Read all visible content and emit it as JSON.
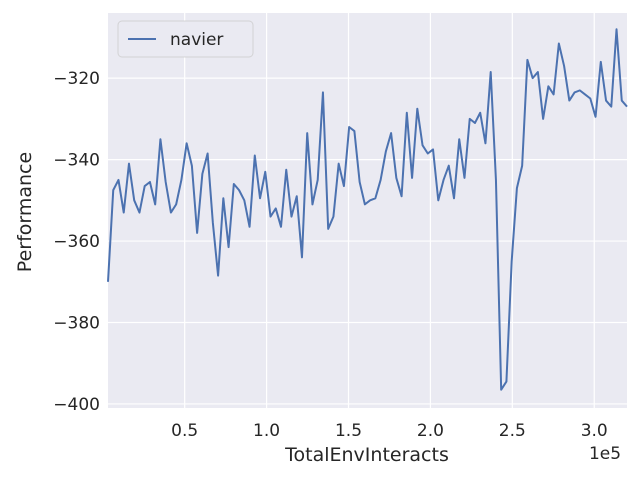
{
  "chart_data": {
    "type": "line",
    "x_label": "TotalEnvInteracts",
    "y_label": "Performance",
    "x_offset_label": "1e5",
    "x": [
      3200,
      6400,
      9600,
      12800,
      16000,
      19200,
      22400,
      25600,
      28800,
      32000,
      35200,
      38400,
      41600,
      44800,
      48000,
      51200,
      54400,
      57600,
      60800,
      64000,
      67200,
      70400,
      73600,
      76800,
      80000,
      83200,
      86400,
      89600,
      92800,
      96000,
      99200,
      102400,
      105600,
      108800,
      112000,
      115200,
      118400,
      121600,
      124800,
      128000,
      131200,
      134400,
      137600,
      140800,
      144000,
      147200,
      150400,
      153600,
      156800,
      160000,
      163200,
      166400,
      169600,
      172800,
      176000,
      179200,
      182400,
      185600,
      188800,
      192000,
      195200,
      198400,
      201600,
      204800,
      208000,
      211200,
      214400,
      217600,
      220800,
      224000,
      227200,
      230400,
      233600,
      236800,
      240000,
      243200,
      246400,
      249600,
      252800,
      256000,
      259200,
      262400,
      265600,
      268800,
      272000,
      275200,
      278400,
      281600,
      284800,
      288000,
      291200,
      294400,
      297600,
      300800,
      304000,
      307200,
      310400,
      313600,
      316800,
      320000
    ],
    "series": [
      {
        "name": "navier",
        "color": "#4c72b0",
        "values": [
          -370,
          -347.5,
          -345,
          -353,
          -341,
          -350,
          -353,
          -346.5,
          -345.5,
          -351,
          -335,
          -345.5,
          -353,
          -351,
          -345,
          -336,
          -341.5,
          -358,
          -343.5,
          -338.5,
          -355.5,
          -368.5,
          -349.5,
          -361.5,
          -346,
          -347.5,
          -350,
          -356.5,
          -339,
          -349.5,
          -343,
          -354,
          -352,
          -356.5,
          -342.5,
          -354,
          -349,
          -364,
          -333.5,
          -351,
          -345,
          -323.5,
          -357,
          -354,
          -341,
          -346.5,
          -332,
          -333,
          -345.5,
          -351,
          -350,
          -349.5,
          -345,
          -338,
          -333.5,
          -344.5,
          -349,
          -328.5,
          -344.5,
          -327.5,
          -336.5,
          -338.5,
          -337.5,
          -350,
          -345,
          -341.5,
          -349.5,
          -335,
          -344.5,
          -330,
          -331,
          -328.5,
          -336,
          -318.5,
          -345,
          -396.5,
          -394.5,
          -365,
          -347,
          -341.5,
          -315.5,
          -320,
          -318.5,
          -330,
          -322,
          -324,
          -311.5,
          -317,
          -325.5,
          -323.5,
          -323,
          -324,
          -325,
          -329.5,
          -316,
          -325.5,
          -327,
          -308,
          -325.5,
          -327
        ]
      }
    ],
    "xlim": [
      3200,
      320000
    ],
    "ylim": [
      -401,
      -304
    ],
    "xticks": [
      {
        "value": 50000,
        "label": "0.5"
      },
      {
        "value": 100000,
        "label": "1.0"
      },
      {
        "value": 150000,
        "label": "1.5"
      },
      {
        "value": 200000,
        "label": "2.0"
      },
      {
        "value": 250000,
        "label": "2.5"
      },
      {
        "value": 300000,
        "label": "3.0"
      }
    ],
    "yticks": [
      {
        "value": -400,
        "label": "−400"
      },
      {
        "value": -380,
        "label": "−380"
      },
      {
        "value": -360,
        "label": "−360"
      },
      {
        "value": -340,
        "label": "−340"
      },
      {
        "value": -320,
        "label": "−320"
      }
    ],
    "grid": true,
    "legend": "upper left"
  }
}
